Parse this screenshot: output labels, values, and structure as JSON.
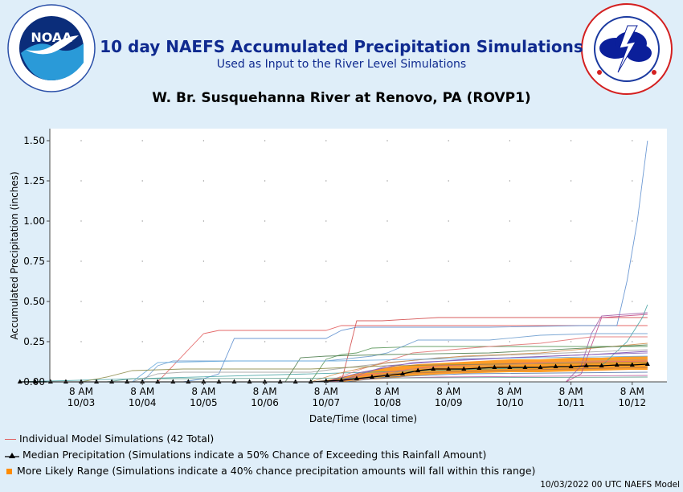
{
  "header": {
    "title": "10 day NAEFS Accumulated Precipitation Simulations",
    "subtitle": "Used as Input to the River Level Simulations",
    "location": "W. Br. Susquehanna River at Renovo, PA (ROVP1)",
    "noaa_logo": {
      "text": "NOAA",
      "ring_text": "NATIONAL OCEANIC AND ATMOSPHERIC ADMINISTRATION · U.S. DEPARTMENT OF COMMERCE"
    },
    "nws_logo": {
      "ring_text": "NATIONAL WEATHER SERVICE"
    }
  },
  "legend": {
    "individual": "Individual Model Simulations (42 Total)",
    "median": "Median Precipitation (Simulations indicate a 50% Chance of Exceeding this Rainfall Amount)",
    "range": "More Likely Range (Simulations indicate a 40% chance precipitation amounts will fall within this range)"
  },
  "footer": "10/03/2022 00 UTC NAEFS Model",
  "colors": {
    "median": "#000000",
    "range": "#ff8c00",
    "individual": "#e06060",
    "title": "#0f2a8f",
    "background": "#dfeef9"
  },
  "chart_data": {
    "type": "line",
    "xlabel": "Date/Time (local time)",
    "ylabel": "Accumulated Precipitation (inches)",
    "ylim": [
      0,
      1.5
    ],
    "yticks": [
      "0.00",
      "0.25",
      "0.50",
      "0.75",
      "1.00",
      "1.25",
      "1.50"
    ],
    "xticks": [
      {
        "line1": "8 AM",
        "line2": "10/03"
      },
      {
        "line1": "8 AM",
        "line2": "10/04"
      },
      {
        "line1": "8 AM",
        "line2": "10/05"
      },
      {
        "line1": "8 AM",
        "line2": "10/06"
      },
      {
        "line1": "8 AM",
        "line2": "10/07"
      },
      {
        "line1": "8 AM",
        "line2": "10/08"
      },
      {
        "line1": "8 AM",
        "line2": "10/09"
      },
      {
        "line1": "8 AM",
        "line2": "10/10"
      },
      {
        "line1": "8 AM",
        "line2": "10/11"
      },
      {
        "line1": "8 AM",
        "line2": "10/12"
      }
    ],
    "x_unit": "hours from 8 AM 10/03",
    "grid": "dotted",
    "median": {
      "name": "Median Precipitation",
      "x": [
        -24,
        -18,
        -12,
        -6,
        0,
        6,
        12,
        18,
        24,
        30,
        36,
        42,
        48,
        54,
        60,
        66,
        72,
        78,
        84,
        90,
        96,
        102,
        108,
        114,
        120,
        126,
        132,
        138,
        144,
        150,
        156,
        162,
        168,
        174,
        180,
        186,
        192,
        198,
        204,
        210,
        216,
        222
      ],
      "y": [
        0,
        0,
        0,
        0,
        0,
        0,
        0,
        0,
        0,
        0,
        0,
        0,
        0,
        0,
        0,
        0,
        0,
        0,
        0,
        0,
        0.005,
        0.01,
        0.02,
        0.03,
        0.04,
        0.05,
        0.07,
        0.08,
        0.08,
        0.08,
        0.085,
        0.09,
        0.09,
        0.09,
        0.09,
        0.095,
        0.095,
        0.1,
        0.1,
        0.105,
        0.105,
        0.11
      ]
    },
    "range_band": {
      "name": "More Likely Range",
      "x": [
        -24,
        0,
        24,
        48,
        72,
        90,
        96,
        102,
        108,
        114,
        120,
        126,
        132,
        144,
        156,
        168,
        180,
        192,
        204,
        216,
        222
      ],
      "low": [
        0,
        0,
        0,
        0,
        0,
        0,
        0,
        0,
        0.01,
        0.015,
        0.02,
        0.03,
        0.04,
        0.05,
        0.055,
        0.06,
        0.06,
        0.065,
        0.07,
        0.075,
        0.075
      ],
      "high": [
        0,
        0,
        0,
        0,
        0,
        0,
        0.01,
        0.03,
        0.05,
        0.07,
        0.09,
        0.1,
        0.11,
        0.12,
        0.13,
        0.14,
        0.14,
        0.15,
        0.15,
        0.16,
        0.16
      ]
    },
    "series": [
      {
        "color": "#e05050",
        "x": [
          -24,
          30,
          42,
          48,
          54,
          72,
          96,
          102,
          108,
          130,
          222
        ],
        "y": [
          0,
          0,
          0.2,
          0.3,
          0.32,
          0.32,
          0.32,
          0.35,
          0.35,
          0.35,
          0.35
        ]
      },
      {
        "color": "#5588cc",
        "x": [
          -24,
          40,
          48,
          54,
          60,
          72,
          96,
          102,
          108,
          160,
          196,
          210,
          214,
          218,
          222
        ],
        "y": [
          0,
          0,
          0.02,
          0.05,
          0.27,
          0.27,
          0.27,
          0.32,
          0.34,
          0.34,
          0.35,
          0.35,
          0.63,
          1.0,
          1.5
        ]
      },
      {
        "color": "#d04040",
        "x": [
          -24,
          102,
          108,
          118,
          140,
          160,
          222
        ],
        "y": [
          0,
          0,
          0.38,
          0.38,
          0.4,
          0.4,
          0.4
        ]
      },
      {
        "color": "#9a50a0",
        "x": [
          -24,
          190,
          196,
          200,
          204,
          222
        ],
        "y": [
          0,
          0,
          0.1,
          0.3,
          0.41,
          0.43
        ]
      },
      {
        "color": "#c04080",
        "x": [
          -24,
          190,
          196,
          204,
          222
        ],
        "y": [
          0,
          0,
          0.05,
          0.4,
          0.42
        ]
      },
      {
        "color": "#40a0a0",
        "x": [
          -24,
          204,
          214,
          220,
          222
        ],
        "y": [
          0,
          0.1,
          0.25,
          0.4,
          0.48
        ]
      },
      {
        "color": "#509050",
        "x": [
          -24,
          90,
          96,
          102,
          108,
          114,
          132,
          150,
          222
        ],
        "y": [
          0,
          0,
          0.14,
          0.17,
          0.18,
          0.21,
          0.22,
          0.22,
          0.22
        ]
      },
      {
        "color": "#6699cc",
        "x": [
          -24,
          24,
          30,
          36,
          72,
          96,
          114,
          120,
          132,
          160,
          180,
          200,
          222
        ],
        "y": [
          0,
          0,
          0.1,
          0.13,
          0.13,
          0.13,
          0.16,
          0.18,
          0.26,
          0.26,
          0.29,
          0.3,
          0.3
        ]
      },
      {
        "color": "#e07070",
        "x": [
          -24,
          96,
          110,
          130,
          160,
          180,
          200,
          222
        ],
        "y": [
          0,
          0,
          0.08,
          0.18,
          0.22,
          0.24,
          0.28,
          0.28
        ]
      },
      {
        "color": "#a0a0a0",
        "x": [
          -24,
          20,
          30,
          40,
          90,
          110,
          140,
          190,
          222
        ],
        "y": [
          0,
          0,
          0.05,
          0.06,
          0.06,
          0.1,
          0.15,
          0.18,
          0.2
        ]
      },
      {
        "color": "#cc8844",
        "x": [
          -24,
          90,
          100,
          120,
          150,
          180,
          222
        ],
        "y": [
          0,
          0,
          0.05,
          0.12,
          0.16,
          0.18,
          0.24
        ]
      },
      {
        "color": "#447744",
        "x": [
          -24,
          80,
          86,
          96,
          120,
          160,
          222
        ],
        "y": [
          0,
          0,
          0.15,
          0.16,
          0.17,
          0.18,
          0.23
        ]
      },
      {
        "color": "#7744aa",
        "x": [
          -24,
          96,
          110,
          130,
          170,
          200,
          222
        ],
        "y": [
          0,
          0,
          0.06,
          0.12,
          0.15,
          0.17,
          0.19
        ]
      },
      {
        "color": "#dd6688",
        "x": [
          -24,
          100,
          110,
          140,
          180,
          222
        ],
        "y": [
          0,
          0,
          0.04,
          0.1,
          0.12,
          0.13
        ]
      },
      {
        "color": "#66aadd",
        "x": [
          -24,
          20,
          30,
          60,
          100,
          130,
          180,
          222
        ],
        "y": [
          0,
          0,
          0.12,
          0.13,
          0.13,
          0.14,
          0.15,
          0.16
        ]
      },
      {
        "color": "#888844",
        "x": [
          -24,
          0,
          10,
          20,
          40,
          90,
          120,
          160,
          222
        ],
        "y": [
          0,
          0,
          0.03,
          0.07,
          0.08,
          0.08,
          0.1,
          0.11,
          0.12
        ]
      },
      {
        "color": "#aa7755",
        "x": [
          -24,
          100,
          120,
          160,
          222
        ],
        "y": [
          0,
          0,
          0.05,
          0.07,
          0.09
        ]
      },
      {
        "color": "#5577aa",
        "x": [
          -24,
          104,
          120,
          150,
          222
        ],
        "y": [
          0,
          0,
          0.03,
          0.05,
          0.06
        ]
      },
      {
        "color": "#bb5599",
        "x": [
          -24,
          96,
          110,
          140,
          222
        ],
        "y": [
          0,
          0,
          0.02,
          0.03,
          0.04
        ]
      },
      {
        "color": "#559988",
        "x": [
          -24,
          10,
          20,
          40,
          222
        ],
        "y": [
          0,
          0,
          0.02,
          0.02,
          0.03
        ]
      },
      {
        "color": "#cc9966",
        "x": [
          -24,
          106,
          130,
          200,
          222
        ],
        "y": [
          0,
          0,
          0.08,
          0.13,
          0.14
        ]
      },
      {
        "color": "#8866bb",
        "x": [
          -24,
          100,
          120,
          150,
          200,
          222
        ],
        "y": [
          0,
          0,
          0.1,
          0.14,
          0.17,
          0.18
        ]
      }
    ]
  }
}
